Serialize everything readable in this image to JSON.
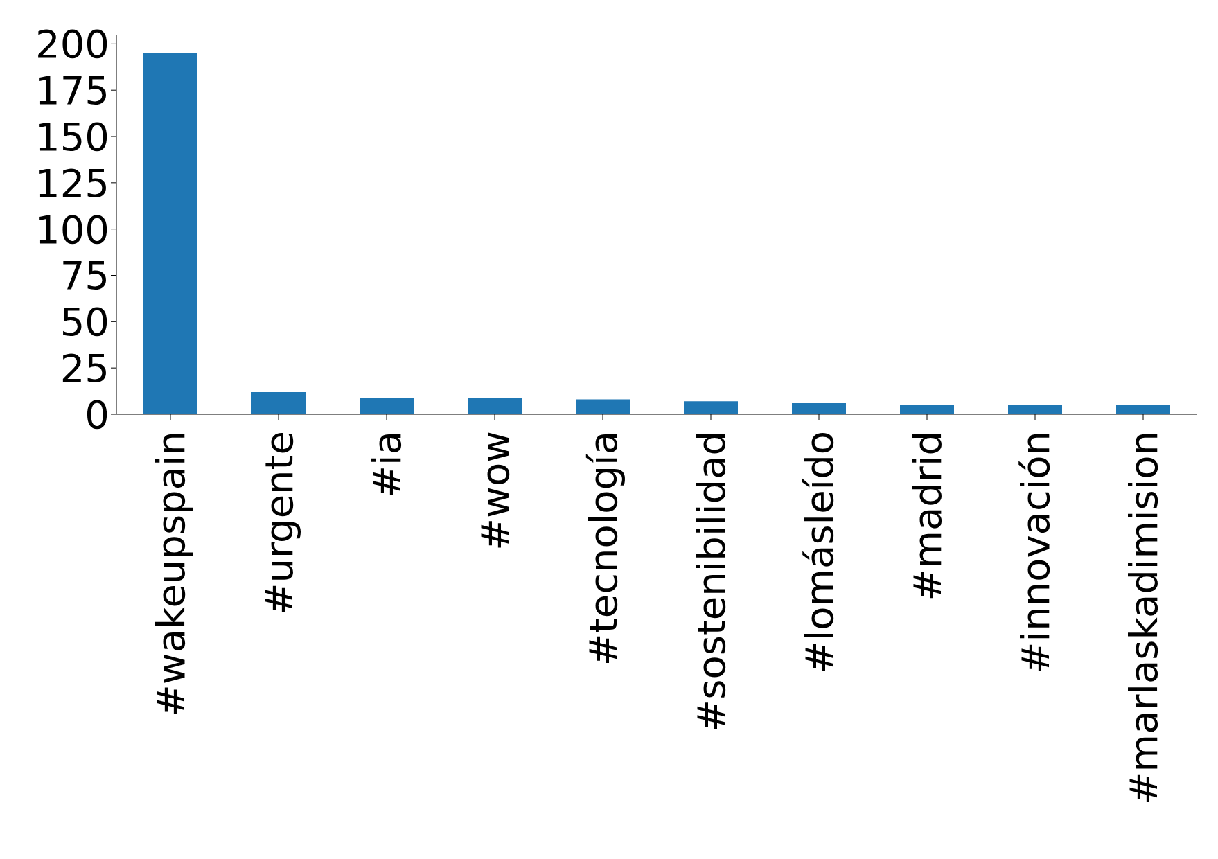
{
  "chart_data": {
    "type": "bar",
    "categories": [
      "#wakeupspain",
      "#urgente",
      "#ia",
      "#wow",
      "#tecnología",
      "#sostenibilidad",
      "#lomásleído",
      "#madrid",
      "#innovación",
      "#marlaskadimision"
    ],
    "values": [
      195,
      12,
      9,
      9,
      8,
      7,
      6,
      5,
      5,
      5
    ],
    "color": "#1f77b4",
    "ylim": [
      0,
      205
    ],
    "yticks": [
      0,
      25,
      50,
      75,
      100,
      125,
      150,
      175,
      200
    ],
    "grid": false,
    "legend": false
  }
}
